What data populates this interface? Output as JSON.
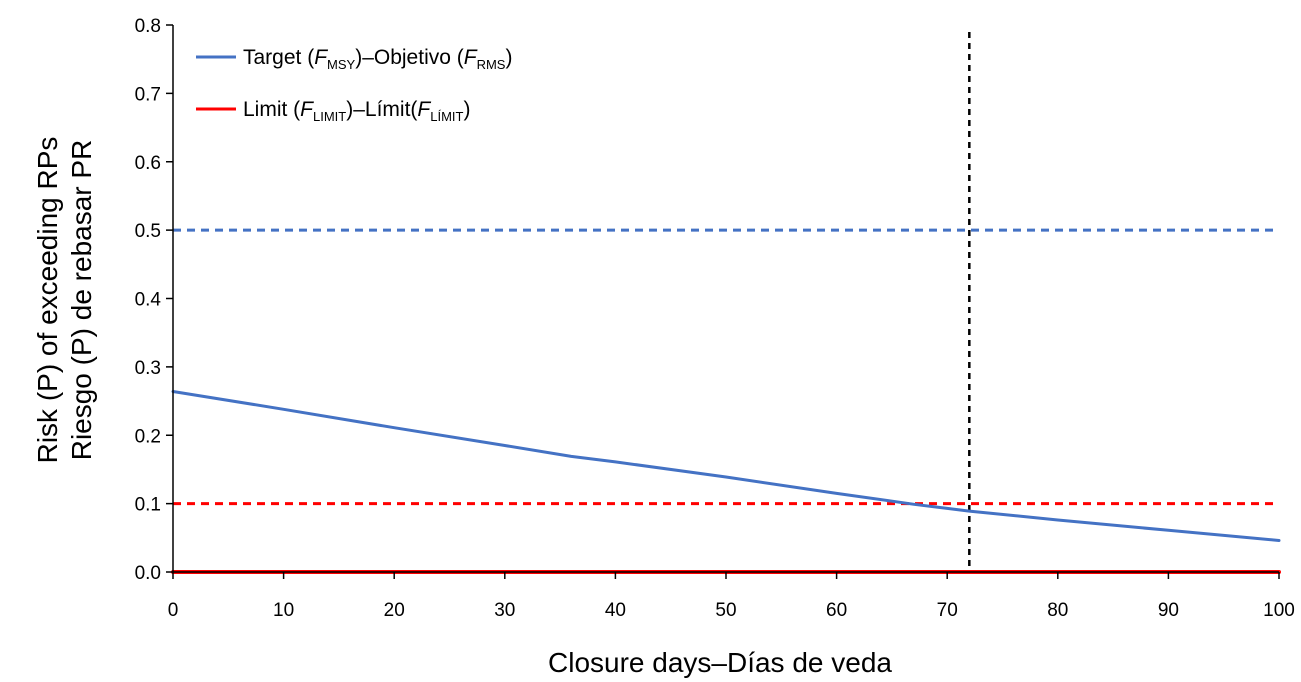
{
  "chart_data": {
    "type": "line",
    "xlabel": "Closure days–Días de veda",
    "ylabel": [
      "Risk (P) of exceeding RPs",
      "Riesgo (P) de rebasar PR"
    ],
    "xlim": [
      0,
      100
    ],
    "ylim": [
      0,
      0.8
    ],
    "x_ticks": [
      0,
      10,
      20,
      30,
      40,
      50,
      60,
      70,
      80,
      90,
      100
    ],
    "x_tick_labels": [
      "0",
      "10",
      "20",
      "30",
      "40",
      "50",
      "60",
      "70",
      "80",
      "90",
      "100"
    ],
    "y_ticks": [
      0,
      0.1,
      0.2,
      0.3,
      0.4,
      0.5,
      0.6,
      0.7,
      0.8
    ],
    "y_tick_labels": [
      "0.0",
      "0.1",
      "0.2",
      "0.3",
      "0.4",
      "0.5",
      "0.6",
      "0.7",
      "0.8"
    ],
    "grid": false,
    "legend_position": "top-left",
    "series": [
      {
        "name": "Target (FMSY)–Objetivo (FRMS)",
        "legend": {
          "pre": "Target (",
          "f1": "F",
          "sub1": "MSY",
          "mid": ")–Objetivo (",
          "f2": "F",
          "sub2": "RMS",
          "post": ")"
        },
        "color": "#4472c4",
        "x": [
          0,
          10,
          20,
          30,
          36,
          40,
          50,
          60,
          67,
          70,
          72,
          80,
          90,
          100
        ],
        "values": [
          0.264,
          0.238,
          0.211,
          0.185,
          0.169,
          0.161,
          0.139,
          0.115,
          0.099,
          0.093,
          0.089,
          0.076,
          0.061,
          0.046
        ]
      },
      {
        "name": "Limit (FLIMIT)–Límit(FLÍMIT)",
        "legend": {
          "pre": "Limit (",
          "f1": "F",
          "sub1": "LIMIT",
          "mid": ")–Límit(",
          "f2": "F",
          "sub2": "LÍMIT",
          "post": ")"
        },
        "color": "#ff0000",
        "x": [
          0,
          100
        ],
        "values": [
          0.0,
          0.0
        ]
      }
    ],
    "reference_lines": [
      {
        "orientation": "horizontal",
        "value": 0.5,
        "color": "#4472c4",
        "style": "dashed"
      },
      {
        "orientation": "horizontal",
        "value": 0.1,
        "color": "#ff0000",
        "style": "dashed"
      },
      {
        "orientation": "vertical",
        "value": 72,
        "color": "#000000",
        "style": "dashed"
      }
    ]
  }
}
